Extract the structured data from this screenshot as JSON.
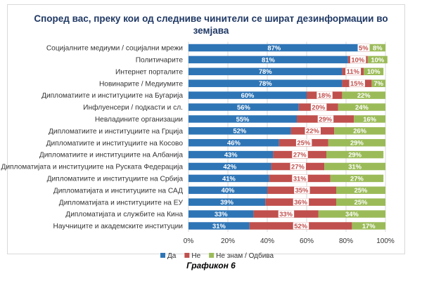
{
  "caption": "Графикон 6",
  "chart_data": {
    "type": "bar",
    "orientation": "horizontal",
    "stacked": true,
    "percent": true,
    "title_lines": [
      "Според вас, преку кои од следниве чинители се шират дезинформации во",
      "земјава"
    ],
    "categories": [
      "Социјалните медиуми / социјални мрежи",
      "Политичарите",
      "Интернет порталите",
      "Новинарите / Медиумите",
      "Дипломатиите и институциите на Бугарија",
      "Инфлуенсери / подкасти и сл.",
      "Невладините организации",
      "Дипломатиите и институциите на Грција",
      "Дипломатиите и институциите на Косово",
      "Дипломатиите и институциите на Албанија",
      "Дипломатијата и институциите на Руската Федерација",
      "Дипломатиите и институциите на Србија",
      "Дипломатијата и институциите на САД",
      "Дипломатијата и институциите на ЕУ",
      "Дипломатијата и службите на Кина",
      "Научниците и академските институции"
    ],
    "series": [
      {
        "name": "Да",
        "color": "#2e75b6",
        "values": [
          87,
          81,
          78,
          78,
          60,
          56,
          55,
          52,
          46,
          43,
          42,
          41,
          40,
          39,
          33,
          31
        ]
      },
      {
        "name": "Не",
        "color": "#c0504d",
        "values": [
          5,
          10,
          11,
          15,
          18,
          20,
          29,
          22,
          25,
          27,
          27,
          31,
          35,
          36,
          33,
          52
        ]
      },
      {
        "name": "Не знам /  Одбива",
        "color": "#9bbb59",
        "values": [
          8,
          10,
          10,
          7,
          22,
          24,
          16,
          26,
          29,
          29,
          31,
          27,
          25,
          25,
          34,
          17
        ]
      }
    ],
    "x_ticks": [
      "0%",
      "20%",
      "40%",
      "60%",
      "80%",
      "100%"
    ],
    "xlim": [
      0,
      100
    ],
    "grid": true,
    "legend_position": "bottom"
  }
}
